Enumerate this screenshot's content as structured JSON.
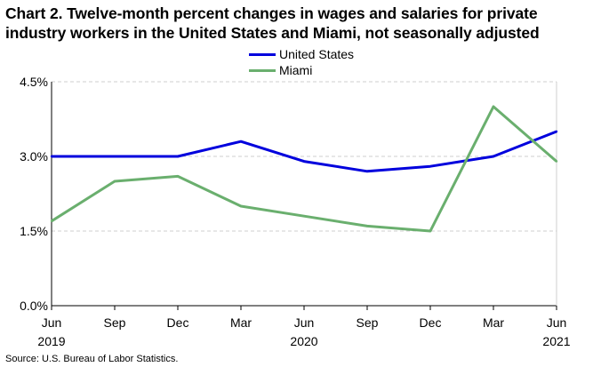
{
  "colors": {
    "united_states": "#0000dd",
    "miami": "#6aaf6e",
    "axis": "#000000",
    "grid": "#cfcfcf"
  },
  "chart_data": {
    "type": "line",
    "title_lines": [
      "Chart 2. Twelve-month percent changes in wages and salaries for private",
      "industry workers in the United States and Miami, not seasonally adjusted"
    ],
    "x_labels": [
      "Jun",
      "Sep",
      "Dec",
      "Mar",
      "Jun",
      "Sep",
      "Dec",
      "Mar",
      "Jun"
    ],
    "year_labels": [
      "2019",
      "",
      "",
      "",
      "2020",
      "",
      "",
      "",
      "2021"
    ],
    "y_ticks": [
      {
        "value": 0.0,
        "label": "0.0%"
      },
      {
        "value": 1.5,
        "label": "1.5%"
      },
      {
        "value": 3.0,
        "label": "3.0%"
      },
      {
        "value": 4.5,
        "label": "4.5%"
      }
    ],
    "ylim": [
      0,
      4.5
    ],
    "series": [
      {
        "name": "United States",
        "color_key": "united_states",
        "values": [
          3.0,
          3.0,
          3.0,
          3.3,
          2.9,
          2.7,
          2.8,
          3.0,
          3.5
        ]
      },
      {
        "name": "Miami",
        "color_key": "miami",
        "values": [
          1.7,
          2.5,
          2.6,
          2.0,
          1.8,
          1.6,
          1.5,
          4.0,
          2.9
        ]
      }
    ],
    "legend": [
      "United States",
      "Miami"
    ],
    "legend_position": "top-center",
    "grid": "horizontal dashed",
    "source": "Source: U.S. Bureau of Labor Statistics."
  }
}
